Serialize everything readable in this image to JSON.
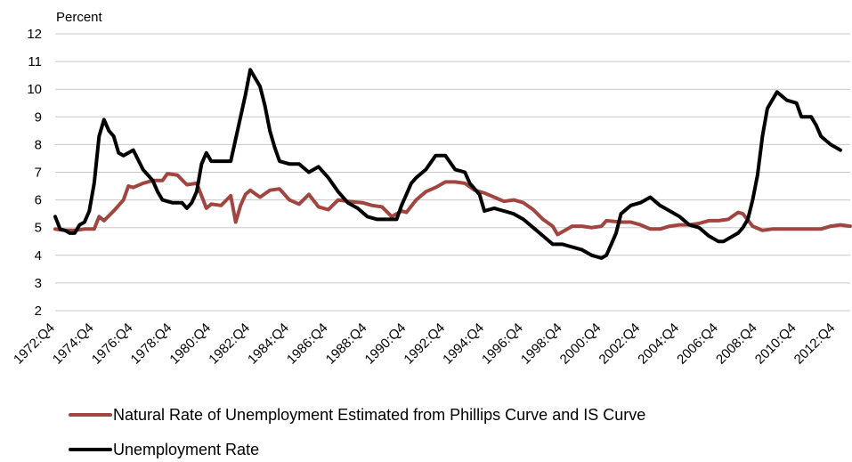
{
  "chart_data": {
    "type": "line",
    "y_unit_label": "Percent",
    "ylim": [
      2,
      12
    ],
    "yticks": [
      2,
      3,
      4,
      5,
      6,
      7,
      8,
      9,
      10,
      11,
      12
    ],
    "grid": "horizontal",
    "legend_position": "bottom",
    "x_start": "1972:Q4",
    "x_end": "2013:Q3",
    "x_tick_labels": [
      "1972:Q4",
      "1974:Q4",
      "1976:Q4",
      "1978:Q4",
      "1980:Q4",
      "1982:Q4",
      "1984:Q4",
      "1986:Q4",
      "1988:Q4",
      "1990:Q4",
      "1992:Q4",
      "1994:Q4",
      "1996:Q4",
      "1998:Q4",
      "2000:Q4",
      "2002:Q4",
      "2004:Q4",
      "2006:Q4",
      "2008:Q4",
      "2010:Q4",
      "2012:Q4"
    ],
    "series": [
      {
        "name": "Natural Rate of Unemployment Estimated from Phillips Curve and IS Curve",
        "color": "#a0453f",
        "points": [
          [
            "1972:Q4",
            4.95
          ],
          [
            "1973:Q2",
            4.9
          ],
          [
            "1973:Q4",
            4.9
          ],
          [
            "1974:Q2",
            4.95
          ],
          [
            "1974:Q4",
            4.95
          ],
          [
            "1975:Q1",
            5.4
          ],
          [
            "1975:Q2",
            5.25
          ],
          [
            "1975:Q4",
            5.6
          ],
          [
            "1976:Q2",
            6.0
          ],
          [
            "1976:Q3",
            6.5
          ],
          [
            "1976:Q4",
            6.45
          ],
          [
            "1977:Q2",
            6.6
          ],
          [
            "1977:Q4",
            6.7
          ],
          [
            "1978:Q2",
            6.7
          ],
          [
            "1978:Q3",
            6.95
          ],
          [
            "1979:Q1",
            6.9
          ],
          [
            "1979:Q3",
            6.55
          ],
          [
            "1980:Q1",
            6.6
          ],
          [
            "1980:Q3",
            5.7
          ],
          [
            "1980:Q4",
            5.85
          ],
          [
            "1981:Q2",
            5.8
          ],
          [
            "1981:Q4",
            6.15
          ],
          [
            "1982:Q1",
            5.2
          ],
          [
            "1982:Q2",
            5.8
          ],
          [
            "1982:Q3",
            6.2
          ],
          [
            "1982:Q4",
            6.35
          ],
          [
            "1983:Q2",
            6.1
          ],
          [
            "1983:Q4",
            6.35
          ],
          [
            "1984:Q2",
            6.4
          ],
          [
            "1984:Q4",
            6.0
          ],
          [
            "1985:Q2",
            5.85
          ],
          [
            "1985:Q4",
            6.2
          ],
          [
            "1986:Q2",
            5.75
          ],
          [
            "1986:Q4",
            5.65
          ],
          [
            "1987:Q2",
            6.0
          ],
          [
            "1987:Q4",
            5.95
          ],
          [
            "1988:Q3",
            5.9
          ],
          [
            "1989:Q1",
            5.8
          ],
          [
            "1989:Q3",
            5.75
          ],
          [
            "1990:Q1",
            5.4
          ],
          [
            "1990:Q3",
            5.6
          ],
          [
            "1990:Q4",
            5.55
          ],
          [
            "1991:Q2",
            6.0
          ],
          [
            "1991:Q4",
            6.3
          ],
          [
            "1992:Q2",
            6.45
          ],
          [
            "1992:Q4",
            6.65
          ],
          [
            "1993:Q2",
            6.65
          ],
          [
            "1993:Q4",
            6.6
          ],
          [
            "1994:Q2",
            6.35
          ],
          [
            "1994:Q4",
            6.25
          ],
          [
            "1995:Q2",
            6.1
          ],
          [
            "1995:Q4",
            5.95
          ],
          [
            "1996:Q2",
            6.0
          ],
          [
            "1996:Q4",
            5.9
          ],
          [
            "1997:Q2",
            5.65
          ],
          [
            "1997:Q4",
            5.3
          ],
          [
            "1998:Q2",
            5.05
          ],
          [
            "1998:Q3",
            4.75
          ],
          [
            "1998:Q4",
            4.85
          ],
          [
            "1999:Q2",
            5.05
          ],
          [
            "1999:Q4",
            5.05
          ],
          [
            "2000:Q2",
            5.0
          ],
          [
            "2000:Q4",
            5.05
          ],
          [
            "2001:Q1",
            5.25
          ],
          [
            "2001:Q4",
            5.2
          ],
          [
            "2002:Q2",
            5.2
          ],
          [
            "2002:Q4",
            5.1
          ],
          [
            "2003:Q2",
            4.95
          ],
          [
            "2003:Q4",
            4.95
          ],
          [
            "2004:Q2",
            5.05
          ],
          [
            "2004:Q4",
            5.1
          ],
          [
            "2005:Q2",
            5.1
          ],
          [
            "2005:Q4",
            5.15
          ],
          [
            "2006:Q2",
            5.25
          ],
          [
            "2006:Q4",
            5.25
          ],
          [
            "2007:Q2",
            5.3
          ],
          [
            "2007:Q4",
            5.55
          ],
          [
            "2008:Q1",
            5.5
          ],
          [
            "2008:Q3",
            5.05
          ],
          [
            "2009:Q1",
            4.9
          ],
          [
            "2009:Q3",
            4.95
          ],
          [
            "2010:Q1",
            4.95
          ],
          [
            "2010:Q3",
            4.95
          ],
          [
            "2011:Q1",
            4.95
          ],
          [
            "2011:Q3",
            4.95
          ],
          [
            "2012:Q1",
            4.95
          ],
          [
            "2012:Q3",
            5.05
          ],
          [
            "2013:Q1",
            5.1
          ],
          [
            "2013:Q3",
            5.05
          ]
        ]
      },
      {
        "name": "Unemployment Rate",
        "color": "#000000",
        "points": [
          [
            "1972:Q4",
            5.4
          ],
          [
            "1973:Q1",
            4.95
          ],
          [
            "1973:Q2",
            4.9
          ],
          [
            "1973:Q3",
            4.8
          ],
          [
            "1973:Q4",
            4.8
          ],
          [
            "1974:Q1",
            5.1
          ],
          [
            "1974:Q2",
            5.2
          ],
          [
            "1974:Q3",
            5.6
          ],
          [
            "1974:Q4",
            6.6
          ],
          [
            "1975:Q1",
            8.3
          ],
          [
            "1975:Q2",
            8.9
          ],
          [
            "1975:Q3",
            8.5
          ],
          [
            "1975:Q4",
            8.3
          ],
          [
            "1976:Q1",
            7.7
          ],
          [
            "1976:Q2",
            7.6
          ],
          [
            "1976:Q3",
            7.7
          ],
          [
            "1976:Q4",
            7.8
          ],
          [
            "1977:Q2",
            7.1
          ],
          [
            "1977:Q4",
            6.7
          ],
          [
            "1978:Q1",
            6.3
          ],
          [
            "1978:Q2",
            6.0
          ],
          [
            "1978:Q4",
            5.9
          ],
          [
            "1979:Q2",
            5.9
          ],
          [
            "1979:Q3",
            5.7
          ],
          [
            "1979:Q4",
            5.9
          ],
          [
            "1980:Q1",
            6.3
          ],
          [
            "1980:Q2",
            7.3
          ],
          [
            "1980:Q3",
            7.7
          ],
          [
            "1980:Q4",
            7.4
          ],
          [
            "1981:Q2",
            7.4
          ],
          [
            "1981:Q4",
            7.4
          ],
          [
            "1982:Q1",
            8.2
          ],
          [
            "1982:Q2",
            9.0
          ],
          [
            "1982:Q3",
            9.8
          ],
          [
            "1982:Q4",
            10.7
          ],
          [
            "1983:Q1",
            10.4
          ],
          [
            "1983:Q2",
            10.1
          ],
          [
            "1983:Q3",
            9.4
          ],
          [
            "1983:Q4",
            8.5
          ],
          [
            "1984:Q1",
            7.9
          ],
          [
            "1984:Q2",
            7.4
          ],
          [
            "1984:Q4",
            7.3
          ],
          [
            "1985:Q2",
            7.3
          ],
          [
            "1985:Q4",
            7.0
          ],
          [
            "1986:Q2",
            7.2
          ],
          [
            "1986:Q4",
            6.8
          ],
          [
            "1987:Q2",
            6.3
          ],
          [
            "1987:Q4",
            5.9
          ],
          [
            "1988:Q2",
            5.7
          ],
          [
            "1988:Q4",
            5.4
          ],
          [
            "1989:Q2",
            5.3
          ],
          [
            "1989:Q4",
            5.3
          ],
          [
            "1990:Q2",
            5.3
          ],
          [
            "1990:Q3",
            5.8
          ],
          [
            "1990:Q4",
            6.2
          ],
          [
            "1991:Q1",
            6.6
          ],
          [
            "1991:Q2",
            6.8
          ],
          [
            "1991:Q4",
            7.1
          ],
          [
            "1992:Q2",
            7.6
          ],
          [
            "1992:Q4",
            7.6
          ],
          [
            "1993:Q2",
            7.1
          ],
          [
            "1993:Q4",
            7.0
          ],
          [
            "1994:Q1",
            6.6
          ],
          [
            "1994:Q3",
            6.2
          ],
          [
            "1994:Q4",
            5.6
          ],
          [
            "1995:Q2",
            5.7
          ],
          [
            "1995:Q4",
            5.6
          ],
          [
            "1996:Q2",
            5.5
          ],
          [
            "1996:Q4",
            5.3
          ],
          [
            "1997:Q2",
            5.0
          ],
          [
            "1997:Q4",
            4.7
          ],
          [
            "1998:Q2",
            4.4
          ],
          [
            "1998:Q4",
            4.4
          ],
          [
            "1999:Q2",
            4.3
          ],
          [
            "1999:Q4",
            4.2
          ],
          [
            "2000:Q2",
            4.0
          ],
          [
            "2000:Q4",
            3.9
          ],
          [
            "2001:Q1",
            4.0
          ],
          [
            "2001:Q2",
            4.4
          ],
          [
            "2001:Q3",
            4.8
          ],
          [
            "2001:Q4",
            5.5
          ],
          [
            "2002:Q2",
            5.8
          ],
          [
            "2002:Q4",
            5.9
          ],
          [
            "2003:Q2",
            6.1
          ],
          [
            "2003:Q4",
            5.8
          ],
          [
            "2004:Q2",
            5.6
          ],
          [
            "2004:Q4",
            5.4
          ],
          [
            "2005:Q2",
            5.1
          ],
          [
            "2005:Q4",
            5.0
          ],
          [
            "2006:Q2",
            4.7
          ],
          [
            "2006:Q4",
            4.5
          ],
          [
            "2007:Q1",
            4.5
          ],
          [
            "2007:Q3",
            4.7
          ],
          [
            "2007:Q4",
            4.8
          ],
          [
            "2008:Q1",
            5.0
          ],
          [
            "2008:Q2",
            5.3
          ],
          [
            "2008:Q3",
            6.0
          ],
          [
            "2008:Q4",
            6.9
          ],
          [
            "2009:Q1",
            8.3
          ],
          [
            "2009:Q2",
            9.3
          ],
          [
            "2009:Q3",
            9.6
          ],
          [
            "2009:Q4",
            9.9
          ],
          [
            "2010:Q2",
            9.6
          ],
          [
            "2010:Q4",
            9.5
          ],
          [
            "2011:Q1",
            9.0
          ],
          [
            "2011:Q3",
            9.0
          ],
          [
            "2011:Q4",
            8.7
          ],
          [
            "2012:Q1",
            8.3
          ],
          [
            "2012:Q3",
            8.0
          ],
          [
            "2013:Q1",
            7.8
          ]
        ]
      }
    ]
  }
}
